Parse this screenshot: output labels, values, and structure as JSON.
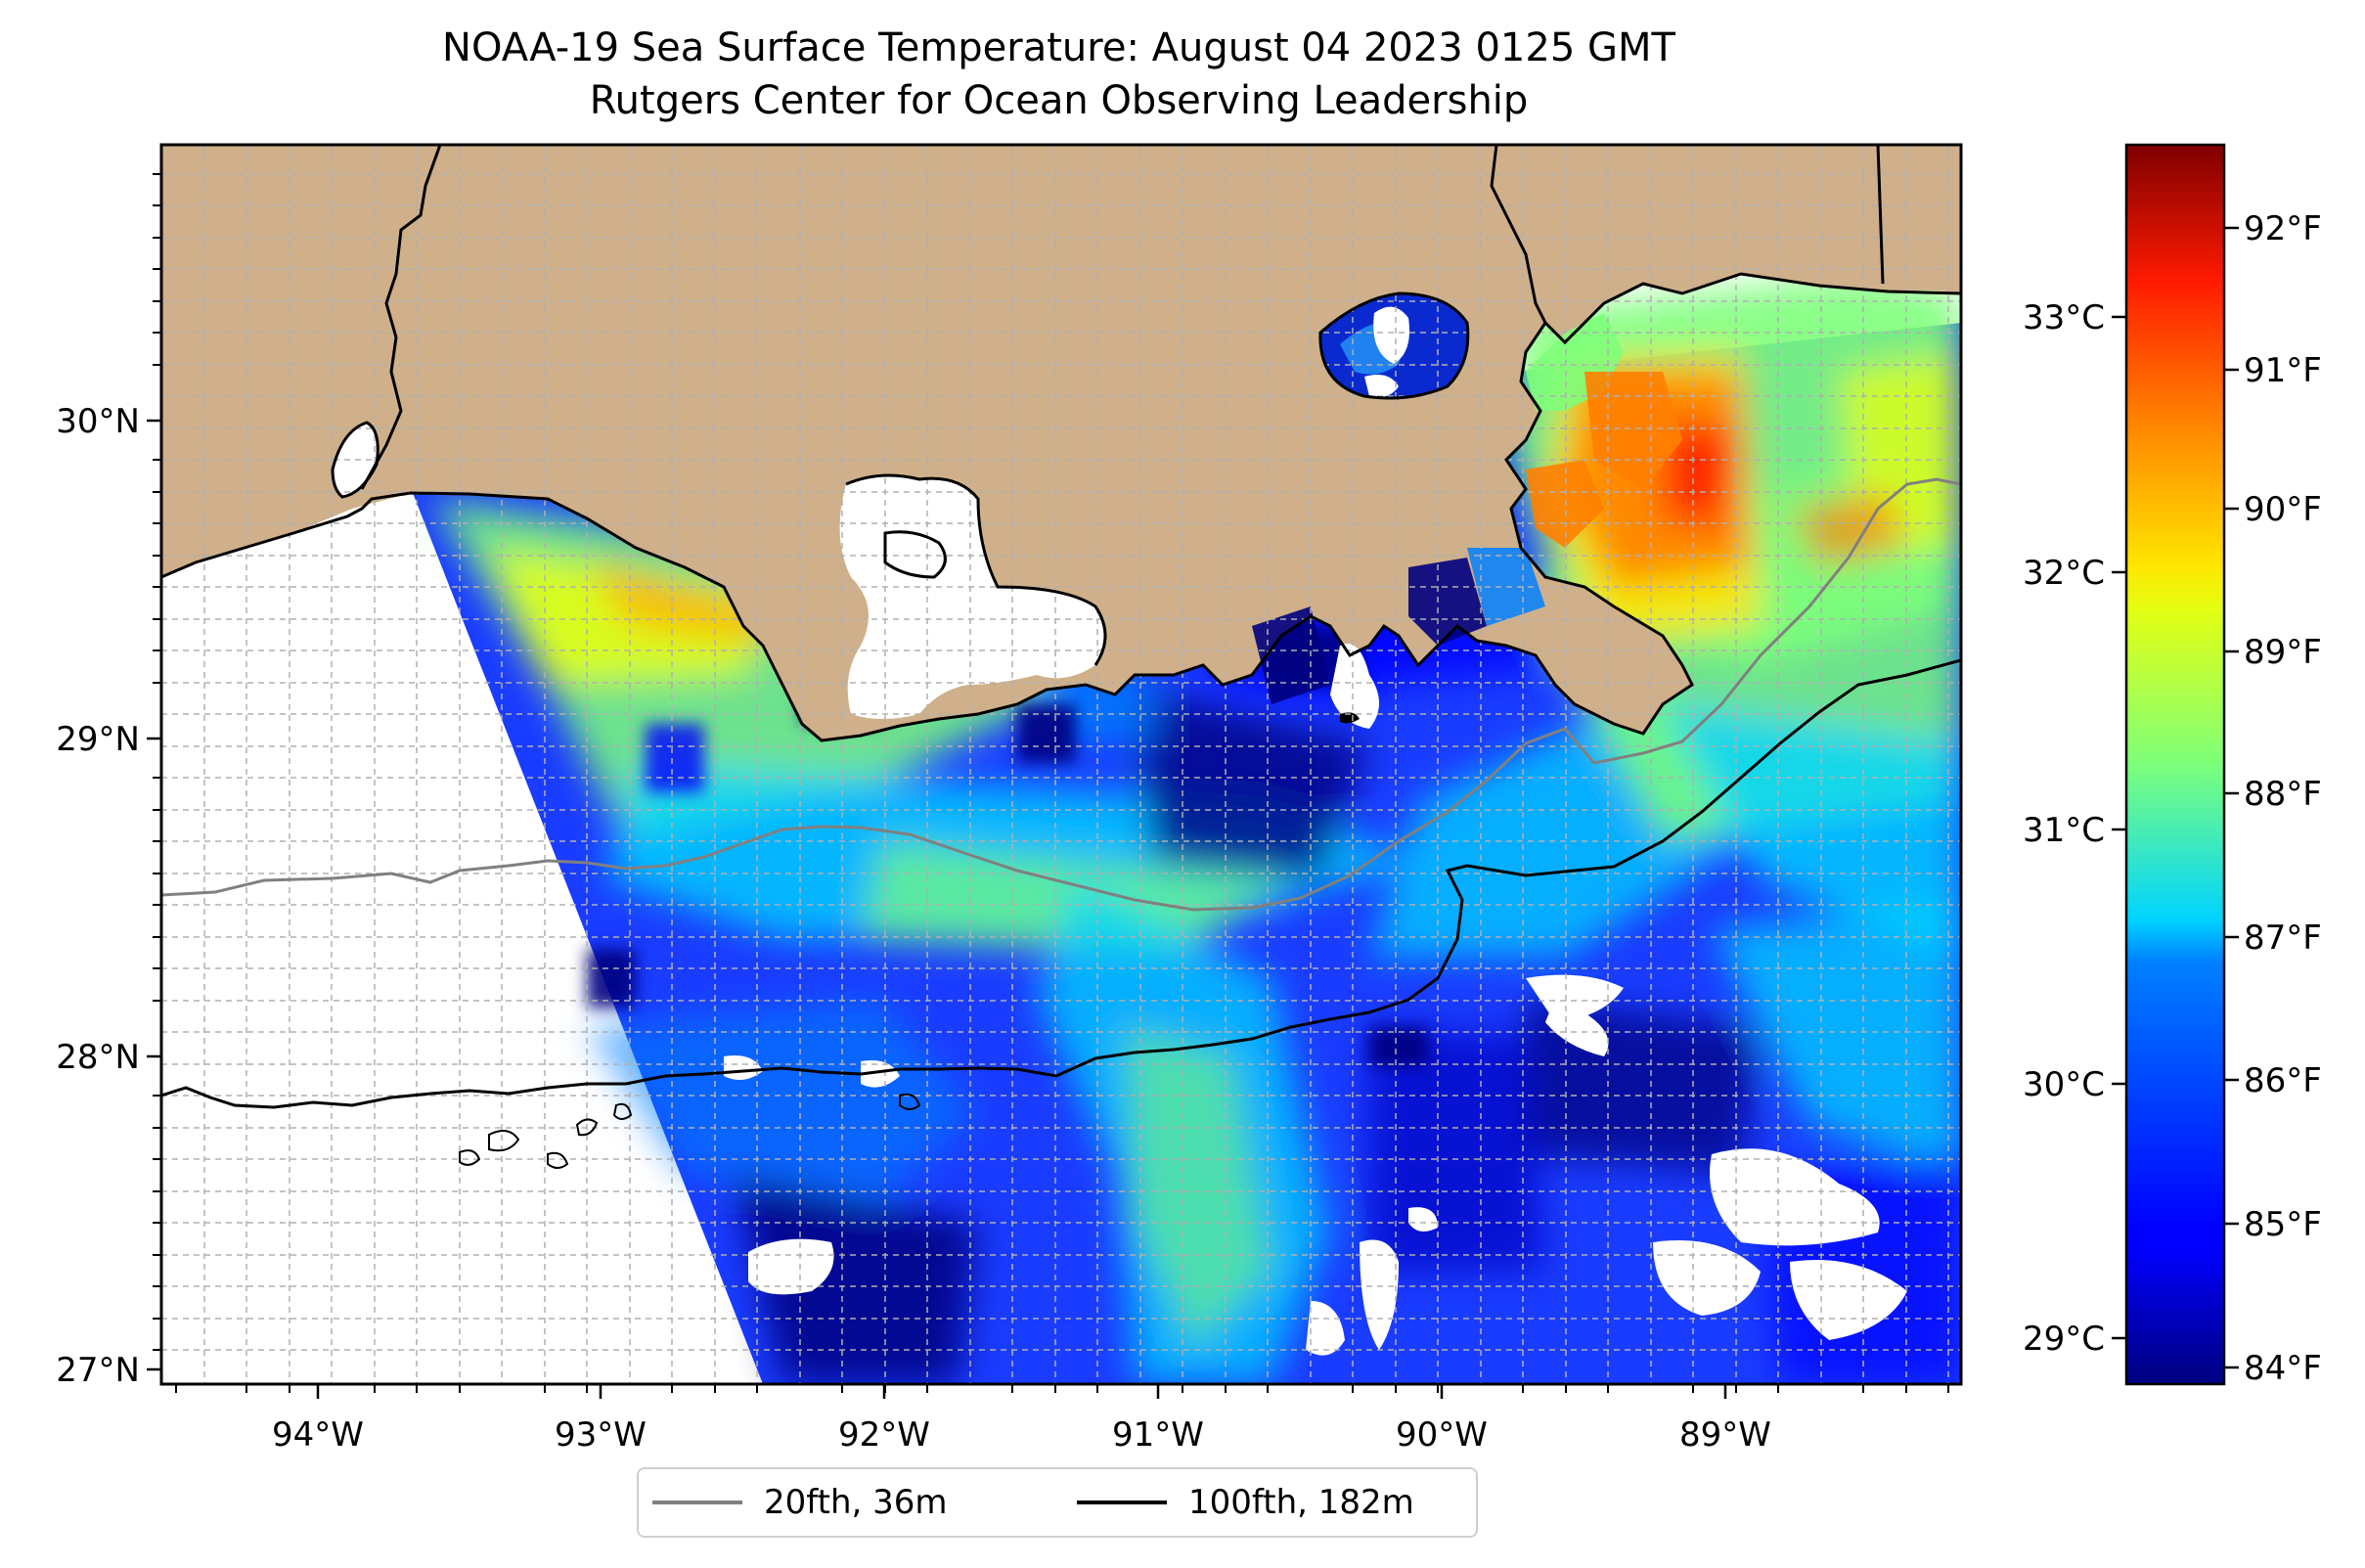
{
  "title": {
    "line1": "NOAA-19 Sea Surface Temperature: August 04 2023 0125 GMT",
    "line2": "Rutgers Center for Ocean Observing Leadership"
  },
  "map": {
    "lon_range": [
      -94.55,
      -88.2
    ],
    "lat_range": [
      26.93,
      30.85
    ],
    "lon_ticks": [
      "94°W",
      "93°W",
      "92°W",
      "91°W",
      "90°W",
      "89°W"
    ],
    "lat_ticks": [
      "27°N",
      "28°N",
      "29°N",
      "30°N"
    ],
    "colors": {
      "land": "#cfb08a",
      "nodata": "#ffffff",
      "coast": "#000000",
      "grid": "#b0b0b0"
    },
    "gridlines": true
  },
  "legend": {
    "items": [
      {
        "label": "20fth, 36m",
        "color": "#808080"
      },
      {
        "label": "100fth, 182m",
        "color": "#000000"
      }
    ],
    "placement": "bottom-center"
  },
  "colorbar": {
    "colormap": "jet",
    "range_f": [
      83.8,
      92.6
    ],
    "fahrenheit_ticks": [
      "84°F",
      "85°F",
      "86°F",
      "87°F",
      "88°F",
      "89°F",
      "90°F",
      "91°F",
      "92°F"
    ],
    "celsius_ticks": [
      "29°C",
      "30°C",
      "31°C",
      "32°C",
      "33°C"
    ]
  }
}
